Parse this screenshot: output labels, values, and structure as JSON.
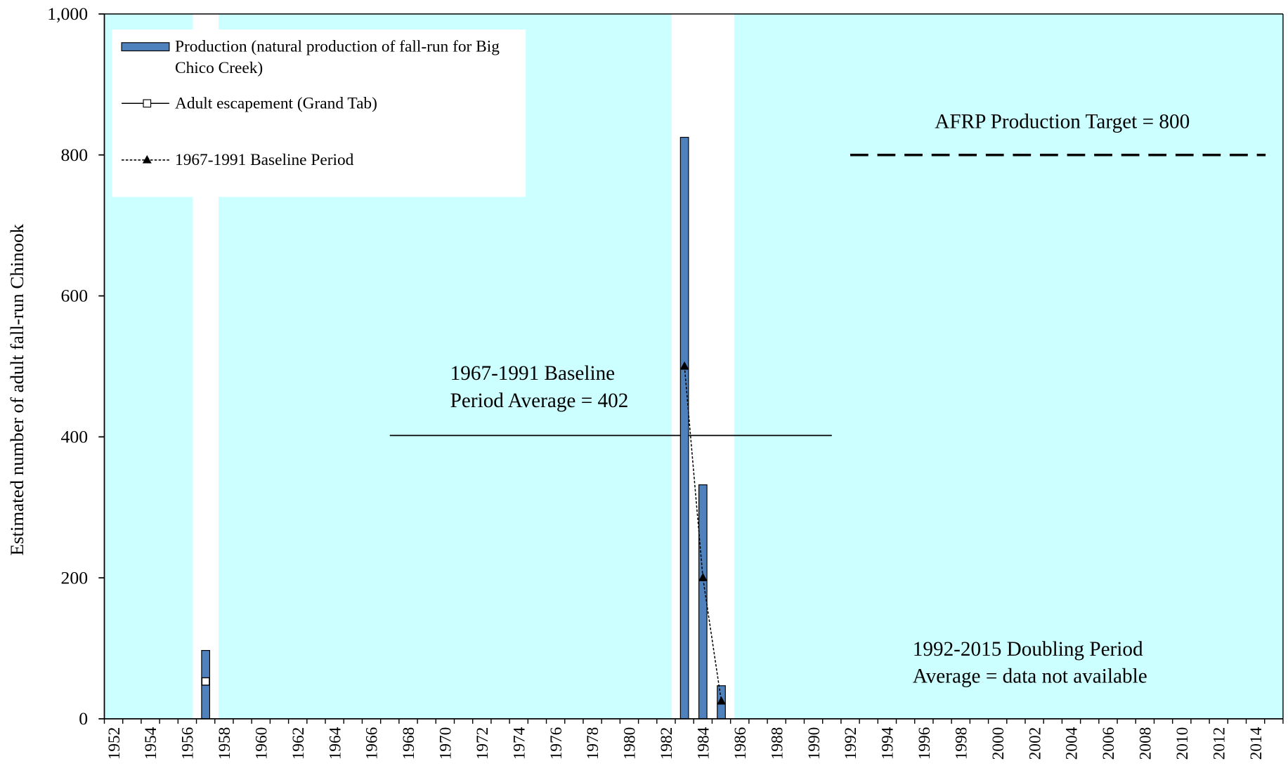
{
  "chart_data": {
    "type": "bar",
    "y_label": "Estimated number of adult fall-run Chinook",
    "categories": [
      "1952",
      null,
      "1954",
      null,
      "1956",
      null,
      "1958",
      null,
      "1960",
      null,
      "1962",
      null,
      "1964",
      null,
      "1966",
      null,
      "1968",
      null,
      "1970",
      null,
      "1972",
      null,
      "1974",
      null,
      "1976",
      null,
      "1978",
      null,
      "1980",
      null,
      "1982",
      null,
      "1984",
      null,
      "1986",
      null,
      "1988",
      null,
      "1990",
      null,
      "1992",
      null,
      "1994",
      null,
      "1996",
      null,
      "1998",
      null,
      "2000",
      null,
      "2002",
      null,
      "2004",
      null,
      "2006",
      null,
      "2008",
      null,
      "2010",
      null,
      "2012",
      null,
      "2014",
      null
    ],
    "series": [
      {
        "name": "Production (natural production of fall-run for Big Chico Creek)",
        "type": "bar",
        "color": "#4f81bd",
        "values": [
          null,
          null,
          null,
          null,
          null,
          97,
          null,
          null,
          null,
          null,
          null,
          null,
          null,
          null,
          null,
          null,
          null,
          null,
          null,
          null,
          null,
          null,
          null,
          null,
          null,
          null,
          null,
          null,
          null,
          null,
          null,
          825,
          332,
          47,
          null,
          null,
          null,
          null,
          null,
          null,
          null,
          null,
          null,
          null,
          null,
          null,
          null,
          null,
          null,
          null,
          null,
          null,
          null,
          null,
          null,
          null,
          null,
          null,
          null,
          null,
          null,
          null,
          null,
          null
        ]
      },
      {
        "name": "Adult escapement (Grand Tab)",
        "type": "line",
        "marker": "square",
        "color": "#000000",
        "values": [
          null,
          null,
          null,
          null,
          null,
          53,
          null,
          null,
          null,
          null,
          null,
          null,
          null,
          null,
          null,
          null,
          null,
          null,
          null,
          null,
          null,
          null,
          null,
          null,
          null,
          null,
          null,
          null,
          null,
          null,
          null,
          null,
          null,
          null,
          null,
          null,
          null,
          null,
          null,
          null,
          null,
          null,
          null,
          null,
          null,
          null,
          null,
          null,
          null,
          null,
          null,
          null,
          null,
          null,
          null,
          null,
          null,
          null,
          null,
          null,
          null,
          null,
          null,
          null
        ]
      },
      {
        "name": "1967-1991 Baseline Period",
        "type": "line",
        "marker": "triangle",
        "dashed": true,
        "color": "#000000",
        "values": [
          null,
          null,
          null,
          null,
          null,
          null,
          null,
          null,
          null,
          null,
          null,
          null,
          null,
          null,
          null,
          null,
          null,
          null,
          null,
          null,
          null,
          null,
          null,
          null,
          null,
          null,
          null,
          null,
          null,
          null,
          null,
          500,
          200,
          25,
          null,
          null,
          null,
          null,
          null,
          null,
          null,
          null,
          null,
          null,
          null,
          null,
          null,
          null,
          null,
          null,
          null,
          null,
          null,
          null,
          null,
          null,
          null,
          null,
          null,
          null,
          null,
          null,
          null,
          null
        ]
      }
    ],
    "ylim": [
      0,
      1000
    ],
    "yticks": [
      0,
      200,
      400,
      600,
      800,
      {
        "value": 1000,
        "label": "1,000"
      }
    ],
    "background": "#ccffff",
    "reference_lines": [
      {
        "value": 402,
        "from": "1967",
        "to": "1991",
        "dashed": false
      },
      {
        "value": 800,
        "from": "1992",
        "to": "2015",
        "dashed": true
      }
    ],
    "annotations": [
      [
        "1967-1991 Baseline",
        "Period Average = 402"
      ],
      [
        "AFRP Production Target = 800"
      ],
      [
        "1992-2015 Doubling Period",
        "Average = data not available"
      ]
    ]
  }
}
